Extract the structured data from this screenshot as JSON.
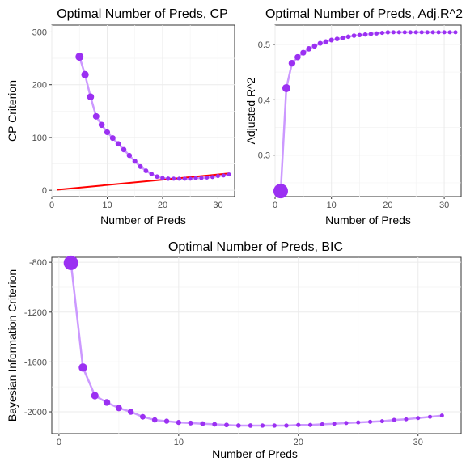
{
  "colors": {
    "line": "#cc99ff",
    "point": "#9b30f2",
    "ref_line": "#ff0000"
  },
  "chart_data": [
    {
      "id": "cp",
      "type": "line",
      "title": "Optimal Number of Preds, CP",
      "xlabel": "Number of Preds",
      "ylabel": "CP Criterion",
      "xlim": [
        0,
        33
      ],
      "ylim": [
        -12,
        313
      ],
      "xticks": [
        0,
        10,
        20,
        30
      ],
      "yticks": [
        0,
        100,
        200,
        300
      ],
      "xtick_labels": [
        "0",
        "10",
        "20",
        "30"
      ],
      "ytick_labels": [
        "0",
        "100",
        "200",
        "300"
      ],
      "x": [
        5,
        6,
        7,
        8,
        9,
        10,
        11,
        12,
        13,
        14,
        15,
        16,
        17,
        18,
        19,
        20,
        21,
        22,
        23,
        24,
        25,
        26,
        27,
        28,
        29,
        30,
        31,
        32
      ],
      "y": [
        253,
        219,
        177,
        140,
        124,
        110,
        99,
        88,
        77,
        66,
        55,
        45,
        37,
        31,
        26,
        23,
        22,
        22,
        22,
        22,
        22,
        23,
        23,
        24,
        25,
        27,
        28,
        30
      ],
      "point_sizes": [
        5,
        4.6,
        4.3,
        4,
        3.8,
        3.6,
        3.5,
        3.4,
        3.3,
        3.2,
        3.1,
        3,
        2.9,
        2.8,
        2.8,
        2.7,
        2.7,
        2.6,
        2.6,
        2.6,
        2.5,
        2.5,
        2.5,
        2.5,
        2.5,
        2.5,
        2.5,
        2.5
      ],
      "reference_line": {
        "x": [
          1,
          32
        ],
        "y": [
          1,
          32
        ]
      }
    },
    {
      "id": "adjr2",
      "type": "line",
      "title": "Optimal Number of Preds, Adj.R^2",
      "xlabel": "Number of Preds",
      "ylabel": "Adjusted R^2",
      "xlim": [
        0,
        33
      ],
      "ylim": [
        0.225,
        0.535
      ],
      "xticks": [
        0,
        10,
        20,
        30
      ],
      "yticks": [
        0.3,
        0.4,
        0.5
      ],
      "xtick_labels": [
        "0",
        "10",
        "20",
        "30"
      ],
      "ytick_labels": [
        "0.3",
        "0.4",
        "0.5"
      ],
      "x": [
        1,
        2,
        3,
        4,
        5,
        6,
        7,
        8,
        9,
        10,
        11,
        12,
        13,
        14,
        15,
        16,
        17,
        18,
        19,
        20,
        21,
        22,
        23,
        24,
        25,
        26,
        27,
        28,
        29,
        30,
        31,
        32
      ],
      "y": [
        0.235,
        0.421,
        0.466,
        0.477,
        0.485,
        0.492,
        0.497,
        0.502,
        0.505,
        0.508,
        0.51,
        0.512,
        0.514,
        0.516,
        0.517,
        0.518,
        0.519,
        0.52,
        0.521,
        0.522,
        0.522,
        0.522,
        0.522,
        0.522,
        0.522,
        0.522,
        0.522,
        0.522,
        0.522,
        0.522,
        0.522,
        0.522
      ],
      "point_sizes": [
        9,
        5,
        4.2,
        3.8,
        3.6,
        3.4,
        3.2,
        3.1,
        3,
        3,
        2.9,
        2.9,
        2.8,
        2.8,
        2.7,
        2.7,
        2.7,
        2.6,
        2.6,
        2.6,
        2.5,
        2.5,
        2.5,
        2.5,
        2.5,
        2.5,
        2.5,
        2.5,
        2.5,
        2.5,
        2.5,
        2.5
      ]
    },
    {
      "id": "bic",
      "type": "line",
      "title": "Optimal Number of Preds, BIC",
      "xlabel": "Number of Preds",
      "ylabel": "Bayesian Information Criterion",
      "xlim": [
        -0.6,
        33.6
      ],
      "ylim": [
        -2175,
        -760
      ],
      "xticks": [
        0,
        10,
        20,
        30
      ],
      "yticks": [
        -2000,
        -1600,
        -1200,
        -800
      ],
      "xtick_labels": [
        "0",
        "10",
        "20",
        "30"
      ],
      "ytick_labels": [
        "-2000",
        "-1600",
        "-1200",
        "-800"
      ],
      "x": [
        1,
        2,
        3,
        4,
        5,
        6,
        7,
        8,
        9,
        10,
        11,
        12,
        13,
        14,
        15,
        16,
        17,
        18,
        19,
        20,
        21,
        22,
        23,
        24,
        25,
        26,
        27,
        28,
        29,
        30,
        31,
        32
      ],
      "y": [
        -805,
        -1645,
        -1870,
        -1925,
        -1970,
        -2000,
        -2040,
        -2065,
        -2075,
        -2085,
        -2090,
        -2095,
        -2100,
        -2105,
        -2110,
        -2110,
        -2110,
        -2110,
        -2110,
        -2105,
        -2105,
        -2100,
        -2095,
        -2090,
        -2085,
        -2080,
        -2075,
        -2065,
        -2060,
        -2050,
        -2040,
        -2030
      ],
      "point_sizes": [
        9,
        5.2,
        4.6,
        4.2,
        3.9,
        3.7,
        3.5,
        3.3,
        3.2,
        3.1,
        3,
        3,
        2.9,
        2.9,
        2.8,
        2.8,
        2.7,
        2.7,
        2.7,
        2.6,
        2.6,
        2.6,
        2.5,
        2.5,
        2.5,
        2.5,
        2.5,
        2.5,
        2.5,
        2.5,
        2.5,
        2.5
      ]
    }
  ]
}
